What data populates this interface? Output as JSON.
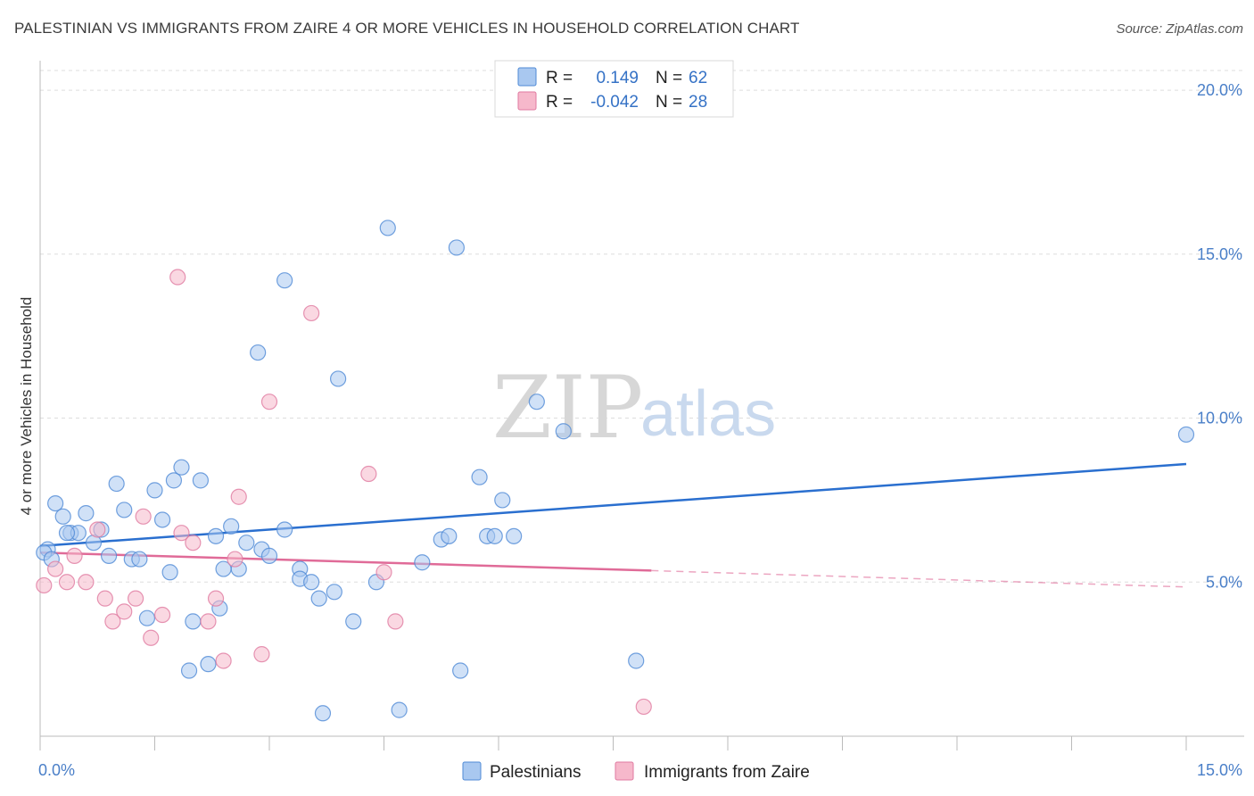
{
  "header": {
    "title": "PALESTINIAN VS IMMIGRANTS FROM ZAIRE 4 OR MORE VEHICLES IN HOUSEHOLD CORRELATION CHART",
    "source": "Source: ZipAtlas.com"
  },
  "watermark": {
    "zip": "ZIP",
    "atlas": "atlas"
  },
  "legend": {
    "rows": [
      {
        "r_label": "R =",
        "r_value": "0.149",
        "n_label": "N =",
        "n_value": "62",
        "color": "#a9c8f0"
      },
      {
        "r_label": "R =",
        "r_value": "-0.042",
        "n_label": "N =",
        "n_value": "28",
        "color": "#f6b8cb"
      }
    ]
  },
  "bottom_legend": {
    "items": [
      {
        "label": "Palestinians",
        "color": "#a9c8f0"
      },
      {
        "label": "Immigrants from Zaire",
        "color": "#f6b8cb"
      }
    ]
  },
  "chart_data": {
    "type": "scatter",
    "title": "PALESTINIAN VS IMMIGRANTS FROM ZAIRE 4 OR MORE VEHICLES IN HOUSEHOLD CORRELATION CHART",
    "xlabel": "",
    "ylabel": "4 or more Vehicles in Household",
    "xlim": [
      0,
      15
    ],
    "ylim": [
      0.3,
      20.9
    ],
    "x_tick_labels": [
      "0.0%",
      "15.0%"
    ],
    "y_ticks": [
      5,
      10,
      15,
      20
    ],
    "y_tick_labels": [
      "5.0%",
      "10.0%",
      "15.0%",
      "20.0%"
    ],
    "grid": true,
    "colors": {
      "series_0": "#4f8ad6",
      "series_1": "#e07aa0",
      "trend_0": "#2a6fcf",
      "trend_1": "#e06b98",
      "axis": "#4a7fc8"
    },
    "series": [
      {
        "name": "Palestinians",
        "points": [
          [
            0.1,
            6.0
          ],
          [
            0.2,
            7.4
          ],
          [
            0.3,
            7.0
          ],
          [
            0.4,
            6.5
          ],
          [
            0.5,
            6.5
          ],
          [
            0.6,
            7.1
          ],
          [
            0.7,
            6.2
          ],
          [
            0.8,
            6.6
          ],
          [
            0.9,
            5.8
          ],
          [
            1.0,
            8.0
          ],
          [
            1.1,
            7.2
          ],
          [
            1.2,
            5.7
          ],
          [
            1.3,
            5.7
          ],
          [
            1.4,
            3.9
          ],
          [
            1.5,
            7.8
          ],
          [
            1.6,
            6.9
          ],
          [
            1.7,
            5.3
          ],
          [
            1.75,
            8.1
          ],
          [
            1.85,
            8.5
          ],
          [
            1.95,
            2.3
          ],
          [
            2.0,
            3.8
          ],
          [
            2.1,
            8.1
          ],
          [
            2.2,
            2.5
          ],
          [
            2.3,
            6.4
          ],
          [
            2.35,
            4.2
          ],
          [
            2.4,
            5.4
          ],
          [
            2.5,
            6.7
          ],
          [
            2.6,
            5.4
          ],
          [
            2.7,
            6.2
          ],
          [
            2.85,
            12.0
          ],
          [
            2.9,
            6.0
          ],
          [
            3.0,
            5.8
          ],
          [
            3.2,
            14.2
          ],
          [
            3.2,
            6.6
          ],
          [
            3.4,
            5.4
          ],
          [
            3.4,
            5.1
          ],
          [
            3.55,
            5.0
          ],
          [
            3.65,
            4.5
          ],
          [
            3.7,
            1.0
          ],
          [
            3.85,
            4.7
          ],
          [
            3.9,
            11.2
          ],
          [
            4.1,
            3.8
          ],
          [
            4.4,
            5.0
          ],
          [
            4.55,
            15.8
          ],
          [
            4.7,
            1.1
          ],
          [
            5.0,
            5.6
          ],
          [
            5.25,
            6.3
          ],
          [
            5.35,
            6.4
          ],
          [
            5.45,
            15.2
          ],
          [
            5.5,
            2.3
          ],
          [
            5.75,
            8.2
          ],
          [
            5.85,
            6.4
          ],
          [
            5.95,
            6.4
          ],
          [
            6.05,
            7.5
          ],
          [
            6.2,
            6.4
          ],
          [
            6.5,
            10.5
          ],
          [
            6.85,
            9.6
          ],
          [
            7.8,
            2.6
          ],
          [
            15.0,
            9.5
          ],
          [
            0.05,
            5.9
          ],
          [
            0.15,
            5.7
          ],
          [
            0.35,
            6.5
          ]
        ]
      },
      {
        "name": "Immigrants from Zaire",
        "points": [
          [
            0.05,
            4.9
          ],
          [
            0.2,
            5.4
          ],
          [
            0.35,
            5.0
          ],
          [
            0.45,
            5.8
          ],
          [
            0.6,
            5.0
          ],
          [
            0.75,
            6.6
          ],
          [
            0.85,
            4.5
          ],
          [
            0.95,
            3.8
          ],
          [
            1.1,
            4.1
          ],
          [
            1.25,
            4.5
          ],
          [
            1.35,
            7.0
          ],
          [
            1.45,
            3.3
          ],
          [
            1.6,
            4.0
          ],
          [
            1.8,
            14.3
          ],
          [
            1.85,
            6.5
          ],
          [
            2.0,
            6.2
          ],
          [
            2.2,
            3.8
          ],
          [
            2.3,
            4.5
          ],
          [
            2.4,
            2.6
          ],
          [
            2.55,
            5.7
          ],
          [
            2.6,
            7.6
          ],
          [
            2.9,
            2.8
          ],
          [
            3.0,
            10.5
          ],
          [
            3.55,
            13.2
          ],
          [
            4.3,
            8.3
          ],
          [
            4.5,
            5.3
          ],
          [
            4.65,
            3.8
          ],
          [
            7.9,
            1.2
          ]
        ]
      }
    ],
    "trend_lines": [
      {
        "series": "Palestinians",
        "x": [
          0,
          15
        ],
        "y": [
          6.1,
          8.6
        ]
      },
      {
        "series": "Immigrants from Zaire",
        "x": [
          0,
          8.0
        ],
        "y": [
          5.9,
          5.35
        ],
        "extension_x": [
          8.0,
          15
        ],
        "extension_y": [
          5.35,
          4.85
        ]
      }
    ]
  }
}
